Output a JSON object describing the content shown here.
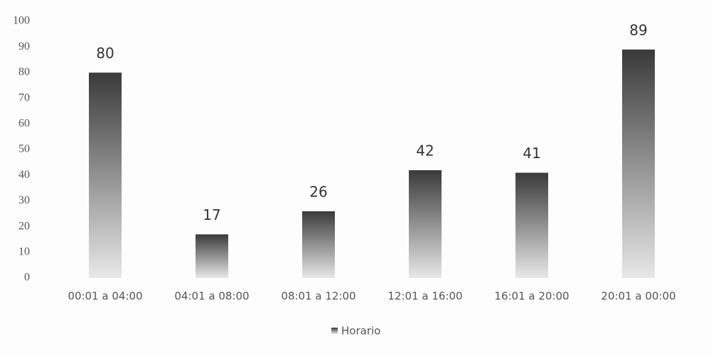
{
  "chart_data": {
    "type": "bar",
    "categories": [
      "00:01 a 04:00",
      "04:01 a 08:00",
      "08:01 a 12:00",
      "12:01 a 16:00",
      "16:01 a 20:00",
      "20:01 a 00:00"
    ],
    "series": [
      {
        "name": "Horario",
        "color": "#3a3a3a",
        "values": [
          80,
          17,
          26,
          42,
          41,
          89
        ]
      }
    ],
    "ylim": [
      0,
      100
    ],
    "yticks": [
      0,
      10,
      20,
      30,
      40,
      50,
      60,
      70,
      80,
      90,
      100
    ],
    "grid": false,
    "legend": "bottom"
  }
}
